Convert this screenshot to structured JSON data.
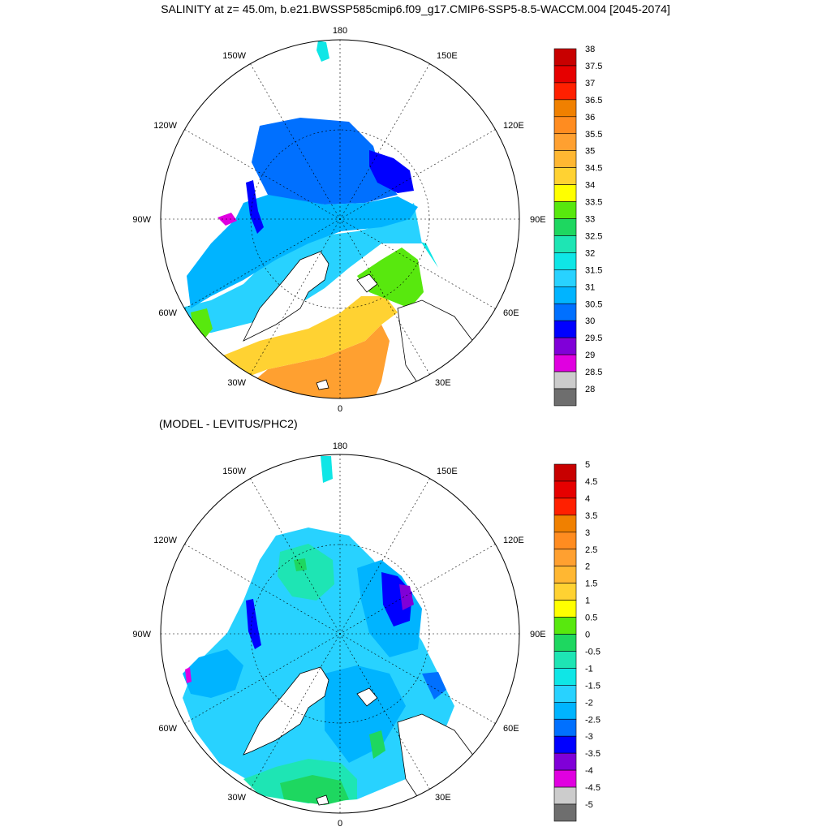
{
  "title": "SALINITY at z=  45.0m, b.e21.BWSSP585cmip6.f09_g17.CMIP6-SSP5-8.5-WACCM.004 [2045-2074]",
  "subtitle": "(MODEL - LEVITUS/PHC2)",
  "chart_data": [
    {
      "type": "heatmap",
      "projection": "north-polar-stereographic",
      "variable": "SALINITY",
      "depth": "45.0m",
      "lon_labels": [
        "180",
        "150E",
        "120E",
        "90E",
        "60E",
        "30E",
        "0",
        "30W",
        "60W",
        "90W",
        "120W",
        "150W"
      ],
      "colorbar": {
        "levels": [
          "38",
          "37.5",
          "37",
          "36.5",
          "36",
          "35.5",
          "35",
          "34.5",
          "34",
          "33.5",
          "33",
          "32.5",
          "32",
          "31.5",
          "31",
          "30.5",
          "30",
          "29.5",
          "29",
          "28.5",
          "28"
        ],
        "colors": [
          "#c80000",
          "#e60000",
          "#ff2000",
          "#f08000",
          "#ff8c20",
          "#ffa030",
          "#ffb732",
          "#ffd232",
          "#ffff00",
          "#58e80e",
          "#1ed760",
          "#1ee5b4",
          "#0fe6e6",
          "#28d2ff",
          "#00b4ff",
          "#0070ff",
          "#0000ff",
          "#8000d8",
          "#e000e0",
          "#cccccc",
          "#6e6e6e"
        ]
      }
    },
    {
      "type": "heatmap",
      "projection": "north-polar-stereographic",
      "variable": "MODEL - LEVITUS/PHC2",
      "lon_labels": [
        "180",
        "150E",
        "120E",
        "90E",
        "60E",
        "30E",
        "0",
        "30W",
        "60W",
        "90W",
        "120W",
        "150W"
      ],
      "colorbar": {
        "levels": [
          "5",
          "4.5",
          "4",
          "3.5",
          "3",
          "2.5",
          "2",
          "1.5",
          "1",
          "0.5",
          "0",
          "-0.5",
          "-1",
          "-1.5",
          "-2",
          "-2.5",
          "-3",
          "-3.5",
          "-4",
          "-4.5",
          "-5"
        ],
        "colors": [
          "#c80000",
          "#e60000",
          "#ff2000",
          "#f08000",
          "#ff8c20",
          "#ffa030",
          "#ffb732",
          "#ffd232",
          "#ffff00",
          "#58e80e",
          "#1ed760",
          "#1ee5b4",
          "#0fe6e6",
          "#28d2ff",
          "#00b4ff",
          "#0070ff",
          "#0000ff",
          "#8000d8",
          "#e000e0",
          "#cccccc",
          "#6e6e6e"
        ]
      }
    }
  ]
}
